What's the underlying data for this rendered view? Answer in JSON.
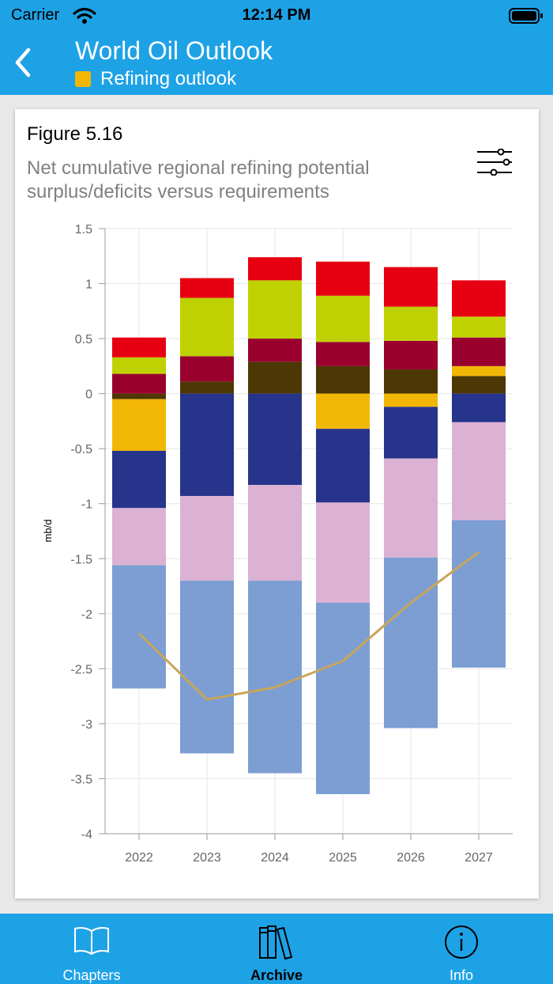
{
  "status": {
    "carrier": "Carrier",
    "time": "12:14 PM"
  },
  "header": {
    "title": "World Oil Outlook",
    "subtitle": "Refining outlook",
    "subtitle_color": "#f2b705"
  },
  "figure": {
    "label": "Figure 5.16",
    "description": "Net cumulative regional refining potential surplus/deficits versus requirements"
  },
  "chart_data": {
    "type": "bar",
    "stacked": true,
    "title": "Net cumulative regional refining potential surplus/deficits versus requirements",
    "ylabel": "mb/d",
    "xlabel": "",
    "ylim": [
      -4,
      1.5
    ],
    "yticks": [
      "1.5",
      "1",
      "0.5",
      "0",
      "-0.5",
      "-1",
      "-1.5",
      "-2",
      "-2.5",
      "-3",
      "-3.5",
      "-4"
    ],
    "categories": [
      "2022",
      "2023",
      "2024",
      "2025",
      "2026",
      "2027"
    ],
    "grid": true,
    "legend": "none",
    "series": [
      {
        "name": "series-dark-olive",
        "color": "#4d3705",
        "values": [
          -0.05,
          0.11,
          0.29,
          0.25,
          0.22,
          0.16
        ]
      },
      {
        "name": "series-orange",
        "color": "#f2b705",
        "values": [
          -0.47,
          0,
          0,
          -0.32,
          -0.12,
          0.09
        ]
      },
      {
        "name": "series-maroon",
        "color": "#99002e",
        "values": [
          0.18,
          0.23,
          0.21,
          0.22,
          0.26,
          0.26
        ]
      },
      {
        "name": "series-lime",
        "color": "#bfd100",
        "values": [
          0.15,
          0.53,
          0.53,
          0.42,
          0.31,
          0.19
        ]
      },
      {
        "name": "series-red",
        "color": "#e60012",
        "values": [
          0.18,
          0.18,
          0.21,
          0.31,
          0.36,
          0.33
        ]
      },
      {
        "name": "series-navy",
        "color": "#27348b",
        "values": [
          -0.52,
          -0.93,
          -0.83,
          -0.67,
          -0.47,
          -0.26
        ]
      },
      {
        "name": "series-pink",
        "color": "#dbb1d4",
        "values": [
          -0.52,
          -0.77,
          -0.87,
          -0.91,
          -0.9,
          -0.89
        ]
      },
      {
        "name": "series-light-blue",
        "color": "#7c9ed2",
        "values": [
          -1.12,
          -1.57,
          -1.75,
          -1.74,
          -1.55,
          -1.34
        ]
      }
    ],
    "line": {
      "name": "requirements-line",
      "color": "#c8a55a",
      "values": [
        -2.18,
        -2.78,
        -2.67,
        -2.43,
        -1.9,
        -1.44
      ]
    }
  },
  "tabs": [
    {
      "label": "Chapters",
      "color": "#ffffff"
    },
    {
      "label": "Archive",
      "color": "#000000"
    },
    {
      "label": "Info",
      "color": "#ffffff"
    }
  ]
}
